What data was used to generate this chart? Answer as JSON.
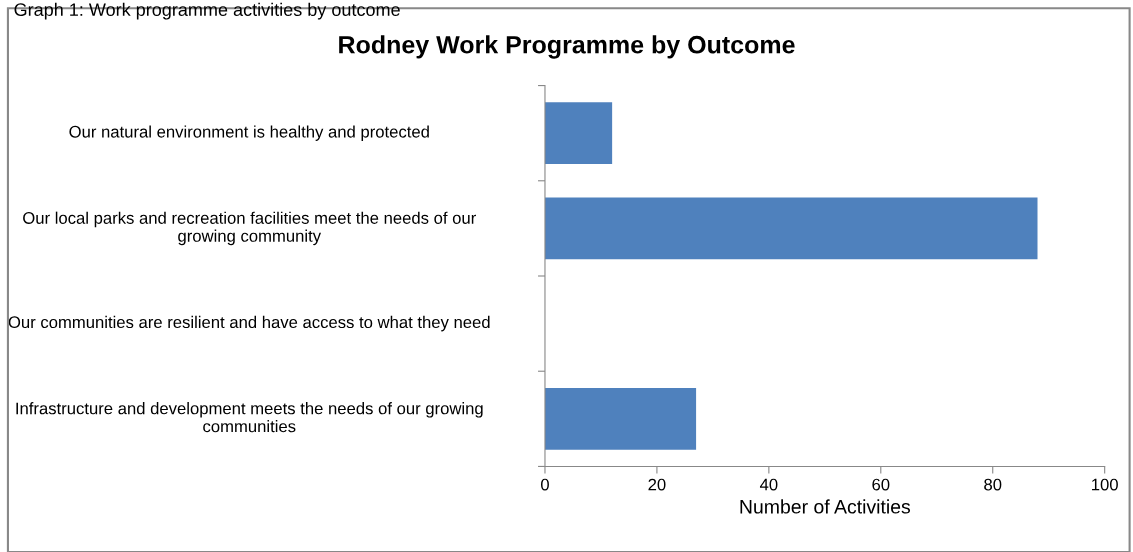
{
  "chart_data": {
    "type": "bar",
    "orientation": "horizontal",
    "title": "Rodney Work Programme by Outcome",
    "annotations": [
      "Graph 1: Work programme activities by outcome"
    ],
    "categories": [
      "Our natural environment is healthy and protected",
      "Our local parks and recreation facilities meet the needs of our growing community",
      "Our communities are resilient and have access to what they need",
      "Infrastructure and development meets the needs of our growing communities"
    ],
    "values": [
      12,
      88,
      0,
      27
    ],
    "color": "#4f81bd",
    "xlabel": "Number of Activities",
    "xlim": [
      0,
      100
    ],
    "xticks": [
      0,
      20,
      40,
      60,
      80,
      100
    ],
    "grid": false,
    "legend": false
  }
}
